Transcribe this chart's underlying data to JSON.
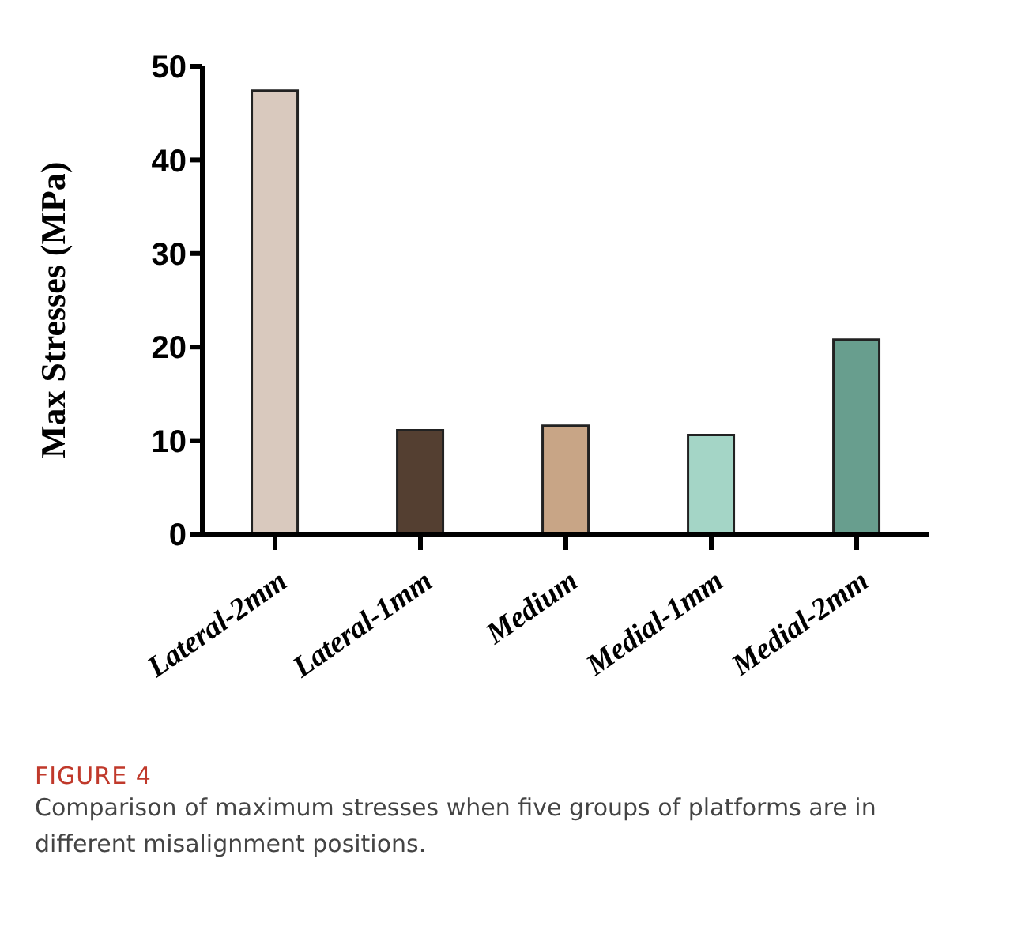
{
  "chart_data": {
    "type": "bar",
    "categories": [
      "Lateral-2mm",
      "Lateral-1mm",
      "Medium",
      "Medial-1mm",
      "Medial-2mm"
    ],
    "values": [
      47.4,
      11.1,
      11.6,
      10.6,
      20.8
    ],
    "colors": [
      "#d9c9be",
      "#543f31",
      "#c8a586",
      "#a4d5c6",
      "#689e8e"
    ],
    "ylabel": "Max Stresses (MPa)",
    "ylim": [
      0,
      50
    ],
    "yticks": [
      0,
      10,
      20,
      30,
      40,
      50
    ],
    "grid": false,
    "legend": false,
    "annotations": [
      "FIGURE 4",
      "Comparison of maximum stresses when five groups of platforms are in different misalignment positions."
    ]
  }
}
